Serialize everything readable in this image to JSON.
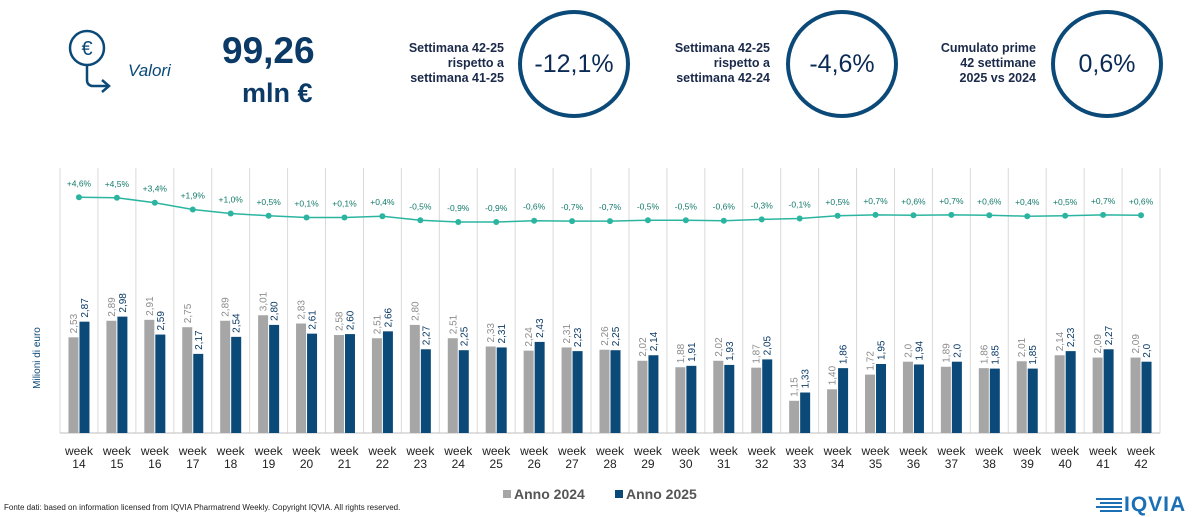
{
  "header": {
    "icon_symbol": "€",
    "values_label": "Valori",
    "total_value": "99,26",
    "total_unit": "mln €"
  },
  "kpis": [
    {
      "label_lines": [
        "Settimana 42-25",
        "rispetto a",
        "settimana 41-25"
      ],
      "value": "-12,1%"
    },
    {
      "label_lines": [
        "Settimana 42-25",
        "rispetto a",
        "settimana 42-24"
      ],
      "value": "-4,6%"
    },
    {
      "label_lines": [
        "Cumulato prime",
        "42 settimane",
        "2025 vs 2024"
      ],
      "value": "0,6%"
    }
  ],
  "colors": {
    "series_2024": "#a6a6a6",
    "series_2025": "#0b4a78",
    "trend_line": "#2bb5a0",
    "kpi_circle": "#0b4a78",
    "big_value": "#0b3a66"
  },
  "chart_data": {
    "type": "bar",
    "ylabel": "Milioni di euro",
    "categories": [
      "week 14",
      "week 15",
      "week 16",
      "week 17",
      "week 18",
      "week 19",
      "week 20",
      "week 21",
      "week 22",
      "week 23",
      "week 24",
      "week 25",
      "week 26",
      "week 27",
      "week 28",
      "week 29",
      "week 30",
      "week 31",
      "week 32",
      "week 33",
      "week 34",
      "week 35",
      "week 36",
      "week 37",
      "week 38",
      "week 39",
      "week 40",
      "week 41",
      "week 42"
    ],
    "category_lines": [
      [
        "week",
        "14"
      ],
      [
        "week",
        "15"
      ],
      [
        "week",
        "16"
      ],
      [
        "week",
        "17"
      ],
      [
        "week",
        "18"
      ],
      [
        "week",
        "19"
      ],
      [
        "week",
        "20"
      ],
      [
        "week",
        "21"
      ],
      [
        "week",
        "22"
      ],
      [
        "week",
        "23"
      ],
      [
        "week",
        "24"
      ],
      [
        "week",
        "25"
      ],
      [
        "week",
        "26"
      ],
      [
        "week",
        "27"
      ],
      [
        "week",
        "28"
      ],
      [
        "week",
        "29"
      ],
      [
        "week",
        "30"
      ],
      [
        "week",
        "31"
      ],
      [
        "week",
        "32"
      ],
      [
        "week",
        "33"
      ],
      [
        "week",
        "34"
      ],
      [
        "week",
        "35"
      ],
      [
        "week",
        "36"
      ],
      [
        "week",
        "37"
      ],
      [
        "week",
        "38"
      ],
      [
        "week",
        "39"
      ],
      [
        "week",
        "40"
      ],
      [
        "week",
        "41"
      ],
      [
        "week",
        "42"
      ]
    ],
    "series": [
      {
        "name": "Anno 2024",
        "values": [
          2.53,
          2.89,
          2.91,
          2.75,
          2.89,
          3.01,
          2.83,
          2.58,
          2.51,
          2.8,
          2.51,
          2.33,
          2.24,
          2.31,
          2.26,
          2.02,
          1.88,
          2.02,
          1.87,
          1.15,
          1.4,
          1.72,
          2.0,
          1.89,
          1.86,
          2.01,
          2.14,
          2.09,
          2.09
        ],
        "labels": [
          "2,53",
          "2,89",
          "2,91",
          "2,75",
          "2,89",
          "3,01",
          "2,83",
          "2,58",
          "2,51",
          "2,80",
          "2,51",
          "2,33",
          "2,24",
          "2,31",
          "2,26",
          "2,02",
          "1,88",
          "2,02",
          "1,87",
          "1,15",
          "1,40",
          "1,72",
          "2,0",
          "1,89",
          "1,86",
          "2,01",
          "2,14",
          "2,09",
          "2,09"
        ]
      },
      {
        "name": "Anno 2025",
        "values": [
          2.87,
          2.98,
          2.59,
          2.17,
          2.54,
          2.8,
          2.61,
          2.6,
          2.66,
          2.27,
          2.25,
          2.31,
          2.43,
          2.23,
          2.25,
          2.14,
          1.91,
          1.93,
          2.05,
          1.33,
          1.86,
          1.95,
          1.94,
          2.0,
          1.85,
          1.85,
          2.23,
          2.27,
          2.0
        ],
        "labels": [
          "2,87",
          "2,98",
          "2,59",
          "2,17",
          "2,54",
          "2,80",
          "2,61",
          "2,60",
          "2,66",
          "2,27",
          "2,25",
          "2,31",
          "2,43",
          "2,23",
          "2,25",
          "2,14",
          "1,91",
          "1,93",
          "2,05",
          "1,33",
          "1,86",
          "1,95",
          "1,94",
          "2,0",
          "1,85",
          "1,85",
          "2,23",
          "2,27",
          "2,0"
        ]
      }
    ],
    "cumulative_change": {
      "values": [
        4.6,
        4.5,
        3.4,
        1.9,
        1.0,
        0.5,
        0.1,
        0.1,
        0.4,
        -0.5,
        -0.9,
        -0.9,
        -0.6,
        -0.7,
        -0.7,
        -0.5,
        -0.5,
        -0.6,
        -0.3,
        -0.1,
        0.5,
        0.7,
        0.6,
        0.7,
        0.6,
        0.4,
        0.5,
        0.7,
        0.6
      ],
      "labels": [
        "+4,6%",
        "+4,5%",
        "+3,4%",
        "+1,9%",
        "+1,0%",
        "+0,5%",
        "+0,1%",
        "+0,1%",
        "+0,4%",
        "-0,5%",
        "-0,9%",
        "-0,9%",
        "-0,6%",
        "-0,7%",
        "-0,7%",
        "-0,5%",
        "-0,5%",
        "-0,6%",
        "-0,3%",
        "-0,1%",
        "+0,5%",
        "+0,7%",
        "+0,6%",
        "+0,7%",
        "+0,6%",
        "+0,4%",
        "+0,5%",
        "+0,7%",
        "+0,6%"
      ]
    },
    "grid": "vertical",
    "legend_position": "bottom-center"
  },
  "footer": {
    "source": "Fonte dati: based on information licensed from IQVIA Pharmatrend Weekly. Copyright IQVIA. All rights reserved.",
    "logo_text": "IQVIA"
  }
}
